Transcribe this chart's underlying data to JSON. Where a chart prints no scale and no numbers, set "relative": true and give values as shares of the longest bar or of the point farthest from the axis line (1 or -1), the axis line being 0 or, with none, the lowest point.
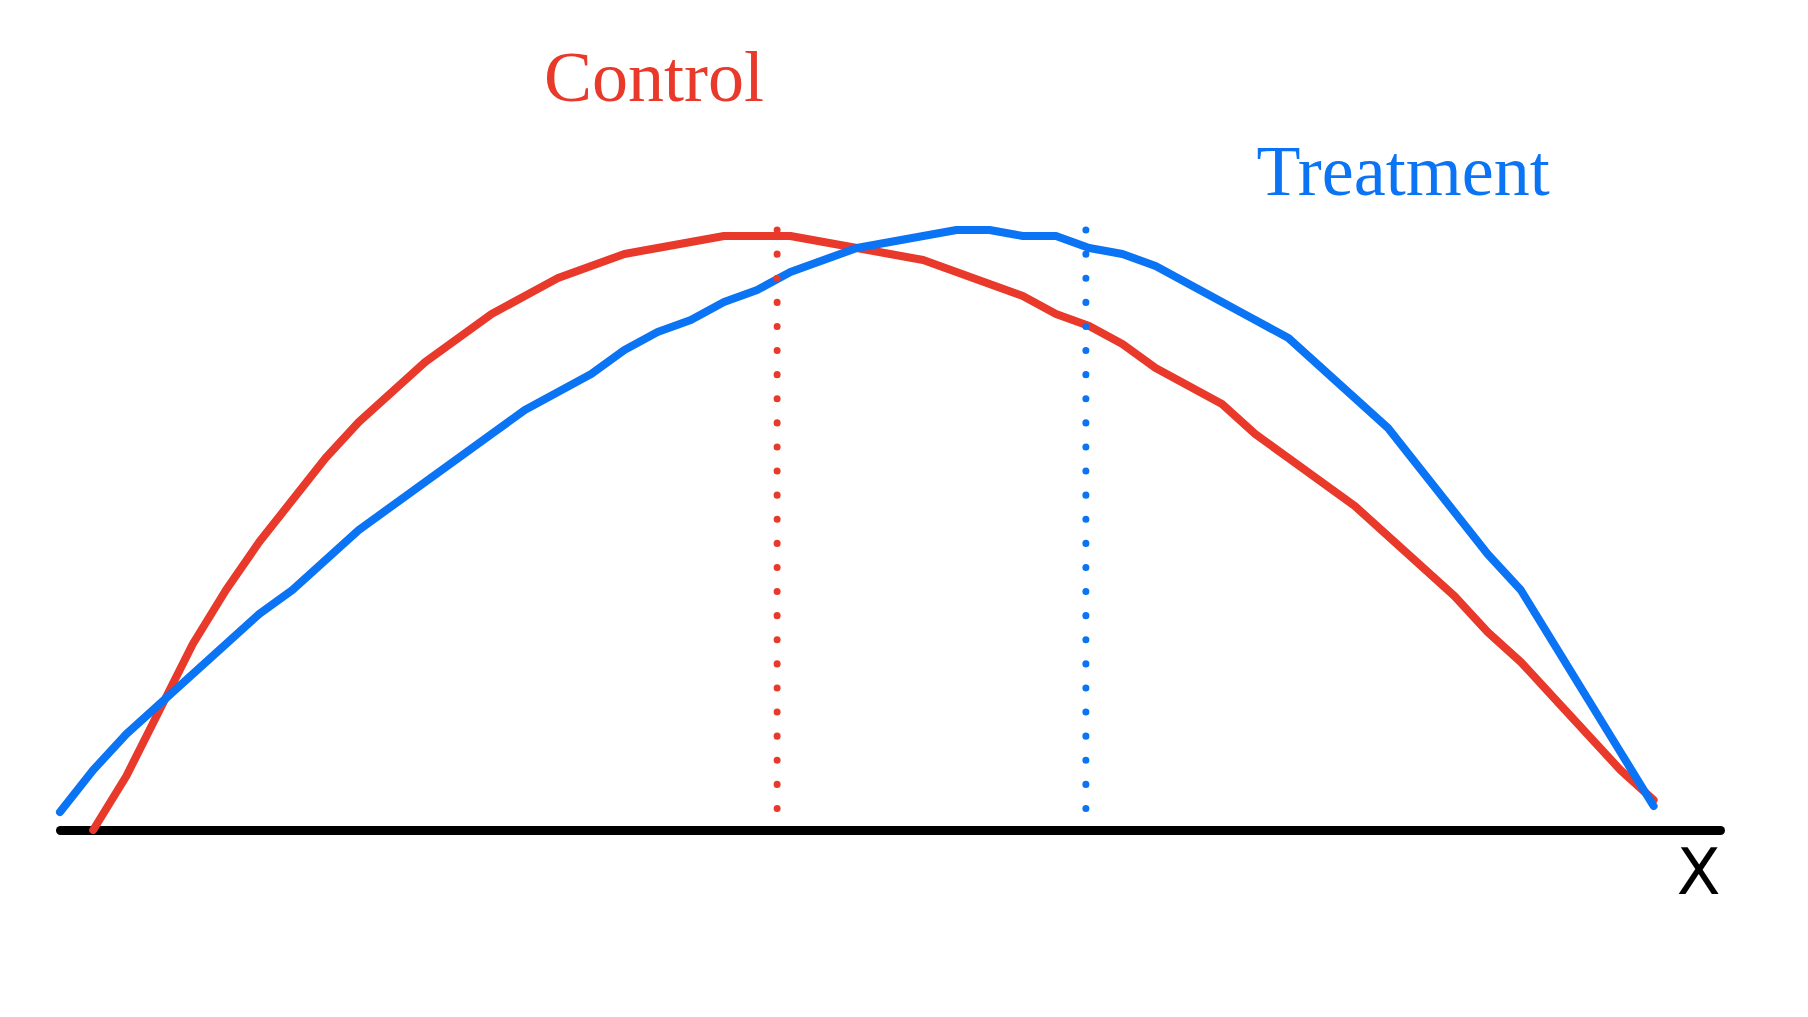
{
  "chart_data": {
    "type": "line",
    "relative": true,
    "xlabel": "X",
    "line_style": "solid",
    "categories": [
      null,
      null,
      null,
      null,
      null,
      null,
      null,
      null,
      null,
      null,
      null,
      null,
      null,
      null,
      null,
      null,
      null,
      null,
      null,
      null,
      null,
      null,
      null,
      null,
      null,
      null,
      null,
      null,
      null,
      null,
      null,
      null,
      null,
      null,
      null,
      null,
      null,
      null,
      null,
      null,
      null,
      null,
      null,
      null,
      null,
      null,
      null,
      null,
      null,
      null,
      null
    ],
    "series": [
      {
        "name": "Control",
        "color": "#e8392a",
        "values": [
          null,
          0,
          0.09,
          0.2,
          0.31,
          0.4,
          0.48,
          0.55,
          0.62,
          0.68,
          0.73,
          0.78,
          0.82,
          0.86,
          0.89,
          0.92,
          0.94,
          0.96,
          0.97,
          0.98,
          0.99,
          0.99,
          0.99,
          0.98,
          0.97,
          0.96,
          0.95,
          0.93,
          0.91,
          0.89,
          0.86,
          0.84,
          0.81,
          0.77,
          0.74,
          0.71,
          0.66,
          0.62,
          0.58,
          0.54,
          0.49,
          0.44,
          0.39,
          0.33,
          0.28,
          0.22,
          0.16,
          0.1,
          0.05,
          null,
          null
        ]
      },
      {
        "name": "Treatment",
        "color": "#0a74f5",
        "values": [
          0.03,
          0.1,
          0.16,
          0.21,
          0.26,
          0.31,
          0.36,
          0.4,
          0.45,
          0.5,
          0.54,
          0.58,
          0.62,
          0.66,
          0.7,
          0.73,
          0.76,
          0.8,
          0.83,
          0.85,
          0.88,
          0.9,
          0.93,
          0.95,
          0.97,
          0.98,
          0.99,
          1,
          1,
          0.99,
          0.99,
          0.97,
          0.96,
          0.94,
          0.91,
          0.88,
          0.85,
          0.82,
          0.77,
          0.72,
          0.67,
          0.6,
          0.53,
          0.46,
          0.4,
          0.31,
          0.22,
          0.13,
          0.04,
          null,
          null
        ]
      }
    ]
  }
}
